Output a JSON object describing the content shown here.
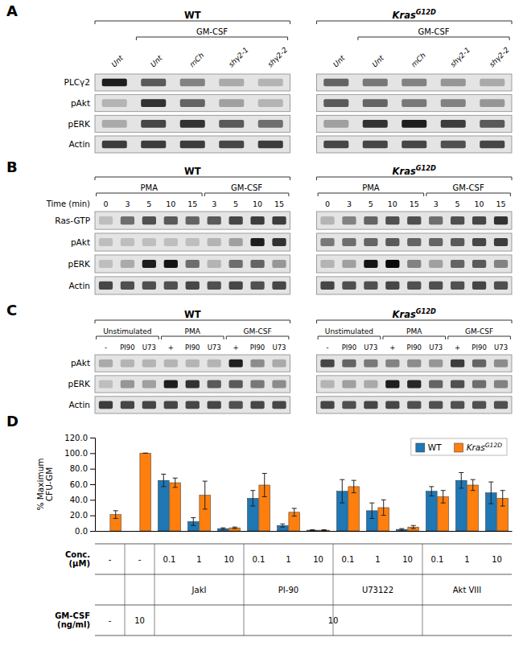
{
  "chart_data": [
    {
      "type": "blot",
      "title": "A",
      "row_labels": [
        "PLCγ2",
        "pAkt",
        "pERK",
        "Actin"
      ],
      "groups": [
        {
          "name": "WT",
          "lane_labels": [
            "Unt",
            "Unt",
            "mCh",
            "shγ2-1",
            "shγ2-2"
          ],
          "values": [
            [
              0.85,
              0.55,
              0.35,
              0.15,
              0.1
            ],
            [
              0.1,
              0.75,
              0.5,
              0.2,
              0.1
            ],
            [
              0.15,
              0.65,
              0.75,
              0.55,
              0.45
            ],
            [
              0.7,
              0.7,
              0.7,
              0.65,
              0.7
            ]
          ],
          "brackets": [
            {
              "label": "GM-CSF",
              "span": [
                1,
                4
              ]
            }
          ]
        },
        {
          "name": "KrasG12D",
          "lane_labels": [
            "Unt",
            "Unt",
            "mCh",
            "shγ2-1",
            "shγ2-2"
          ],
          "values": [
            [
              0.5,
              0.4,
              0.35,
              0.25,
              0.15
            ],
            [
              0.55,
              0.5,
              0.4,
              0.35,
              0.25
            ],
            [
              0.2,
              0.75,
              0.85,
              0.7,
              0.55
            ],
            [
              0.65,
              0.65,
              0.65,
              0.6,
              0.65
            ]
          ],
          "brackets": [
            {
              "label": "GM-CSF",
              "span": [
                1,
                4
              ]
            }
          ]
        }
      ]
    },
    {
      "type": "blot",
      "title": "B",
      "row_labels": [
        "Ras-GTP",
        "pAkt",
        "pERK",
        "Actin"
      ],
      "lane_title": "Time (min)",
      "groups": [
        {
          "name": "WT",
          "lane_labels": [
            "0",
            "3",
            "5",
            "10",
            "15",
            "3",
            "5",
            "10",
            "15"
          ],
          "values": [
            [
              0.05,
              0.45,
              0.6,
              0.55,
              0.5,
              0.55,
              0.65,
              0.7,
              0.7
            ],
            [
              0.05,
              0.05,
              0.05,
              0.05,
              0.05,
              0.1,
              0.2,
              0.85,
              0.75
            ],
            [
              0.05,
              0.15,
              0.85,
              0.9,
              0.45,
              0.1,
              0.45,
              0.5,
              0.25
            ],
            [
              0.65,
              0.6,
              0.6,
              0.6,
              0.65,
              0.6,
              0.65,
              0.6,
              0.65
            ]
          ],
          "brackets": [
            {
              "label": "PMA",
              "span": [
                0,
                4
              ]
            },
            {
              "label": "GM-CSF",
              "span": [
                5,
                8
              ]
            }
          ]
        },
        {
          "name": "KrasG12D",
          "lane_labels": [
            "0",
            "3",
            "5",
            "10",
            "15",
            "3",
            "5",
            "10",
            "15"
          ],
          "values": [
            [
              0.1,
              0.35,
              0.5,
              0.6,
              0.6,
              0.45,
              0.6,
              0.65,
              0.75
            ],
            [
              0.4,
              0.45,
              0.5,
              0.55,
              0.5,
              0.5,
              0.55,
              0.65,
              0.7
            ],
            [
              0.1,
              0.2,
              0.9,
              0.95,
              0.35,
              0.2,
              0.5,
              0.55,
              0.35
            ],
            [
              0.65,
              0.6,
              0.6,
              0.65,
              0.6,
              0.6,
              0.6,
              0.65,
              0.6
            ]
          ],
          "brackets": [
            {
              "label": "PMA",
              "span": [
                0,
                4
              ]
            },
            {
              "label": "GM-CSF",
              "span": [
                5,
                8
              ]
            }
          ]
        }
      ]
    },
    {
      "type": "blot",
      "title": "C",
      "row_labels": [
        "pAkt",
        "pERK",
        "Actin"
      ],
      "groups": [
        {
          "name": "WT",
          "lane_labels": [
            "-",
            "PI90",
            "U73",
            "+",
            "PI90",
            "U73",
            "+",
            "PI90",
            "U73"
          ],
          "values": [
            [
              0.15,
              0.1,
              0.1,
              0.1,
              0.1,
              0.1,
              0.85,
              0.3,
              0.15
            ],
            [
              0.05,
              0.25,
              0.2,
              0.85,
              0.75,
              0.55,
              0.55,
              0.4,
              0.3
            ],
            [
              0.7,
              0.65,
              0.65,
              0.65,
              0.65,
              0.65,
              0.6,
              0.65,
              0.65
            ]
          ],
          "brackets": [
            {
              "label": "Unstimulated",
              "span": [
                0,
                2
              ]
            },
            {
              "label": "PMA",
              "span": [
                3,
                5
              ]
            },
            {
              "label": "GM-CSF",
              "span": [
                6,
                8
              ]
            }
          ]
        },
        {
          "name": "KrasG12D",
          "lane_labels": [
            "-",
            "PI90",
            "U73",
            "+",
            "PI90",
            "U73",
            "+",
            "PI90",
            "U73"
          ],
          "values": [
            [
              0.65,
              0.5,
              0.4,
              0.35,
              0.3,
              0.25,
              0.7,
              0.5,
              0.3
            ],
            [
              0.1,
              0.2,
              0.15,
              0.85,
              0.8,
              0.5,
              0.6,
              0.45,
              0.35
            ],
            [
              0.65,
              0.6,
              0.65,
              0.65,
              0.6,
              0.6,
              0.6,
              0.6,
              0.6
            ]
          ],
          "brackets": [
            {
              "label": "Unstimulated",
              "span": [
                0,
                2
              ]
            },
            {
              "label": "PMA",
              "span": [
                3,
                5
              ]
            },
            {
              "label": "GM-CSF",
              "span": [
                6,
                8
              ]
            }
          ]
        }
      ]
    },
    {
      "type": "bar",
      "title": "D",
      "ylabel": "% Maximum\nCFU-GM",
      "ylim": [
        0,
        120
      ],
      "yticks": [
        {
          "value": 0,
          "label": "0.0"
        },
        {
          "value": 20,
          "label": "20.0"
        },
        {
          "value": 40,
          "label": "40.0"
        },
        {
          "value": 60,
          "label": "60.0"
        },
        {
          "value": 80,
          "label": "80.0"
        },
        {
          "value": 100,
          "label": "100.0"
        },
        {
          "value": 120,
          "label": "120.0"
        }
      ],
      "categories": [
        "-",
        "-",
        "0.1",
        "1",
        "10",
        "0.1",
        "1",
        "10",
        "0.1",
        "1",
        "10",
        "0.1",
        "1",
        "10"
      ],
      "series": [
        {
          "name": "WT",
          "values": [
            null,
            null,
            65,
            12,
            3,
            42,
            7,
            1,
            51,
            26,
            2,
            51,
            65,
            49
          ],
          "errors": [
            null,
            null,
            8,
            5,
            1,
            10,
            2,
            0.5,
            15,
            10,
            1,
            6,
            10,
            14
          ]
        },
        {
          "name": "KrasG12D",
          "values": [
            21,
            100,
            62,
            46,
            4,
            59,
            24,
            1,
            57,
            30,
            5,
            44,
            59,
            42
          ],
          "errors": [
            5,
            0,
            6,
            18,
            1,
            15,
            5,
            0.5,
            8,
            10,
            2,
            8,
            7,
            10
          ]
        }
      ],
      "legend": "upper right",
      "conc_label": "Conc.\n(μM)",
      "groups": [
        {
          "name": "JakI",
          "span": [
            2,
            4
          ]
        },
        {
          "name": "PI-90",
          "span": [
            5,
            7
          ]
        },
        {
          "name": "U73122",
          "span": [
            8,
            10
          ]
        },
        {
          "name": "Akt VIII",
          "span": [
            11,
            13
          ]
        }
      ],
      "gmcsf_label": "GM-CSF\n(ng/ml)",
      "gmcsf": [
        {
          "label": "-",
          "span": [
            0,
            0
          ]
        },
        {
          "label": "10",
          "span": [
            1,
            1
          ]
        },
        {
          "label": "10",
          "span": [
            2,
            13
          ]
        }
      ]
    }
  ]
}
